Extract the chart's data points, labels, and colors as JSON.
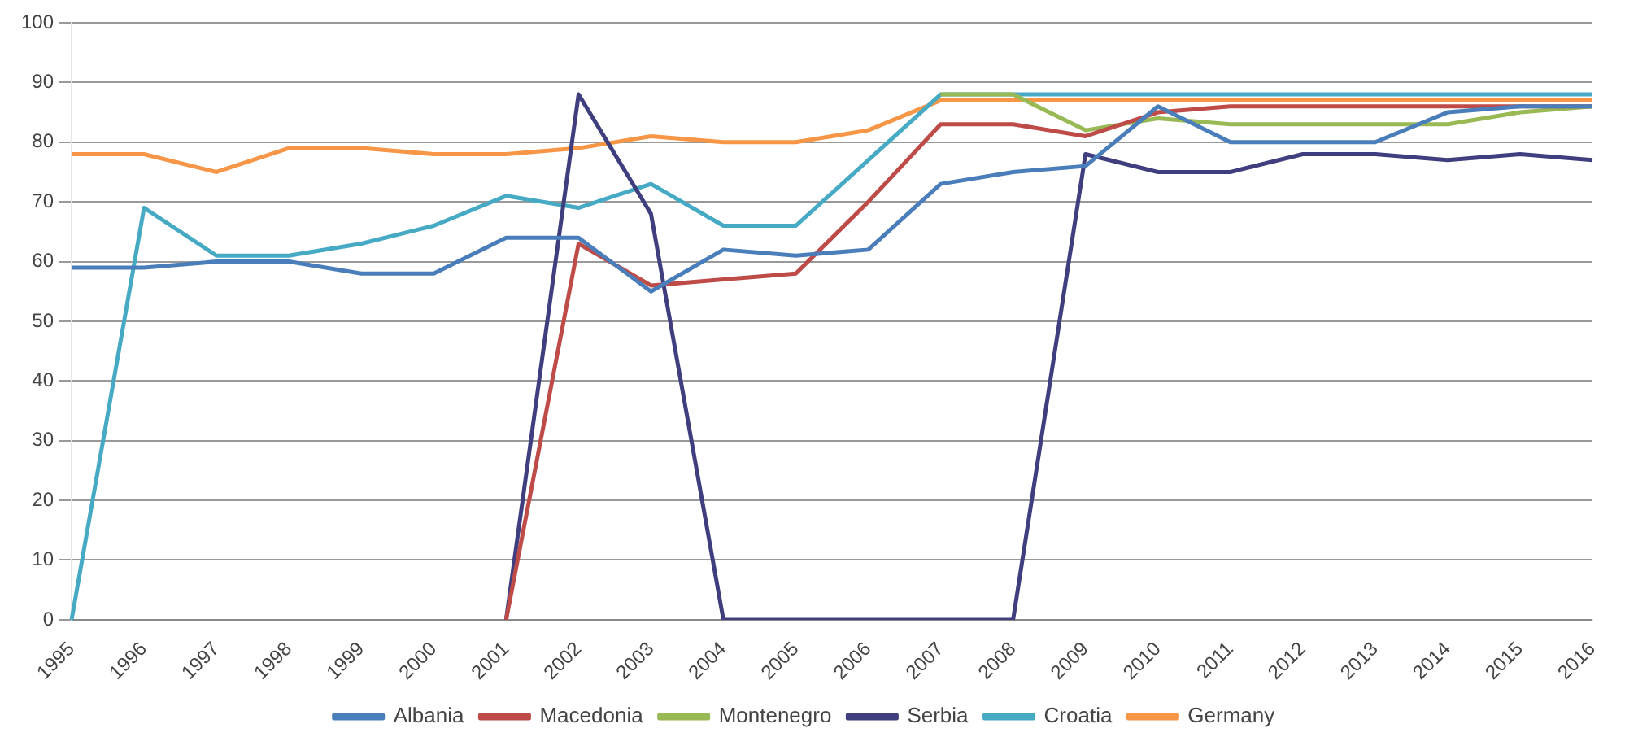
{
  "chart_data": {
    "type": "line",
    "categories": [
      "1995",
      "1996",
      "1997",
      "1998",
      "1999",
      "2000",
      "2001",
      "2002",
      "2003",
      "2004",
      "2005",
      "2006",
      "2007",
      "2008",
      "2009",
      "2010",
      "2011",
      "2012",
      "2013",
      "2014",
      "2015",
      "2016"
    ],
    "series": [
      {
        "name": "Albania",
        "color": "#4a7ebb",
        "values": [
          59,
          59,
          60,
          60,
          58,
          58,
          64,
          64,
          55,
          62,
          61,
          62,
          73,
          75,
          76,
          86,
          80,
          80,
          80,
          85,
          86,
          86
        ]
      },
      {
        "name": "Macedonia",
        "color": "#be4b48",
        "values": [
          null,
          null,
          null,
          null,
          null,
          null,
          0,
          63,
          56,
          57,
          58,
          70,
          83,
          83,
          81,
          85,
          86,
          86,
          86,
          86,
          86,
          86
        ]
      },
      {
        "name": "Montenegro",
        "color": "#98b954",
        "values": [
          null,
          null,
          null,
          null,
          null,
          null,
          null,
          null,
          null,
          null,
          null,
          null,
          88,
          88,
          82,
          84,
          83,
          83,
          83,
          83,
          85,
          86
        ]
      },
      {
        "name": "Serbia",
        "color": "#3f3f7f",
        "values": [
          null,
          null,
          null,
          null,
          null,
          null,
          0,
          88,
          68,
          0,
          0,
          0,
          0,
          0,
          78,
          75,
          75,
          78,
          78,
          77,
          78,
          77
        ]
      },
      {
        "name": "Croatia",
        "color": "#46aac5",
        "values": [
          0,
          69,
          61,
          61,
          63,
          66,
          71,
          69,
          73,
          66,
          66,
          77,
          88,
          88,
          88,
          88,
          88,
          88,
          88,
          88,
          88,
          88
        ]
      },
      {
        "name": "Germany",
        "color": "#f79646",
        "values": [
          78,
          78,
          75,
          79,
          79,
          78,
          78,
          79,
          81,
          80,
          80,
          82,
          87,
          87,
          87,
          87,
          87,
          87,
          87,
          87,
          87,
          87
        ]
      }
    ],
    "ylim": [
      0,
      100
    ],
    "yticks": [
      0,
      10,
      20,
      30,
      40,
      50,
      60,
      70,
      80,
      90,
      100
    ],
    "grid": "y",
    "legend": "bottom",
    "marker": "none",
    "line_style": "solid"
  }
}
